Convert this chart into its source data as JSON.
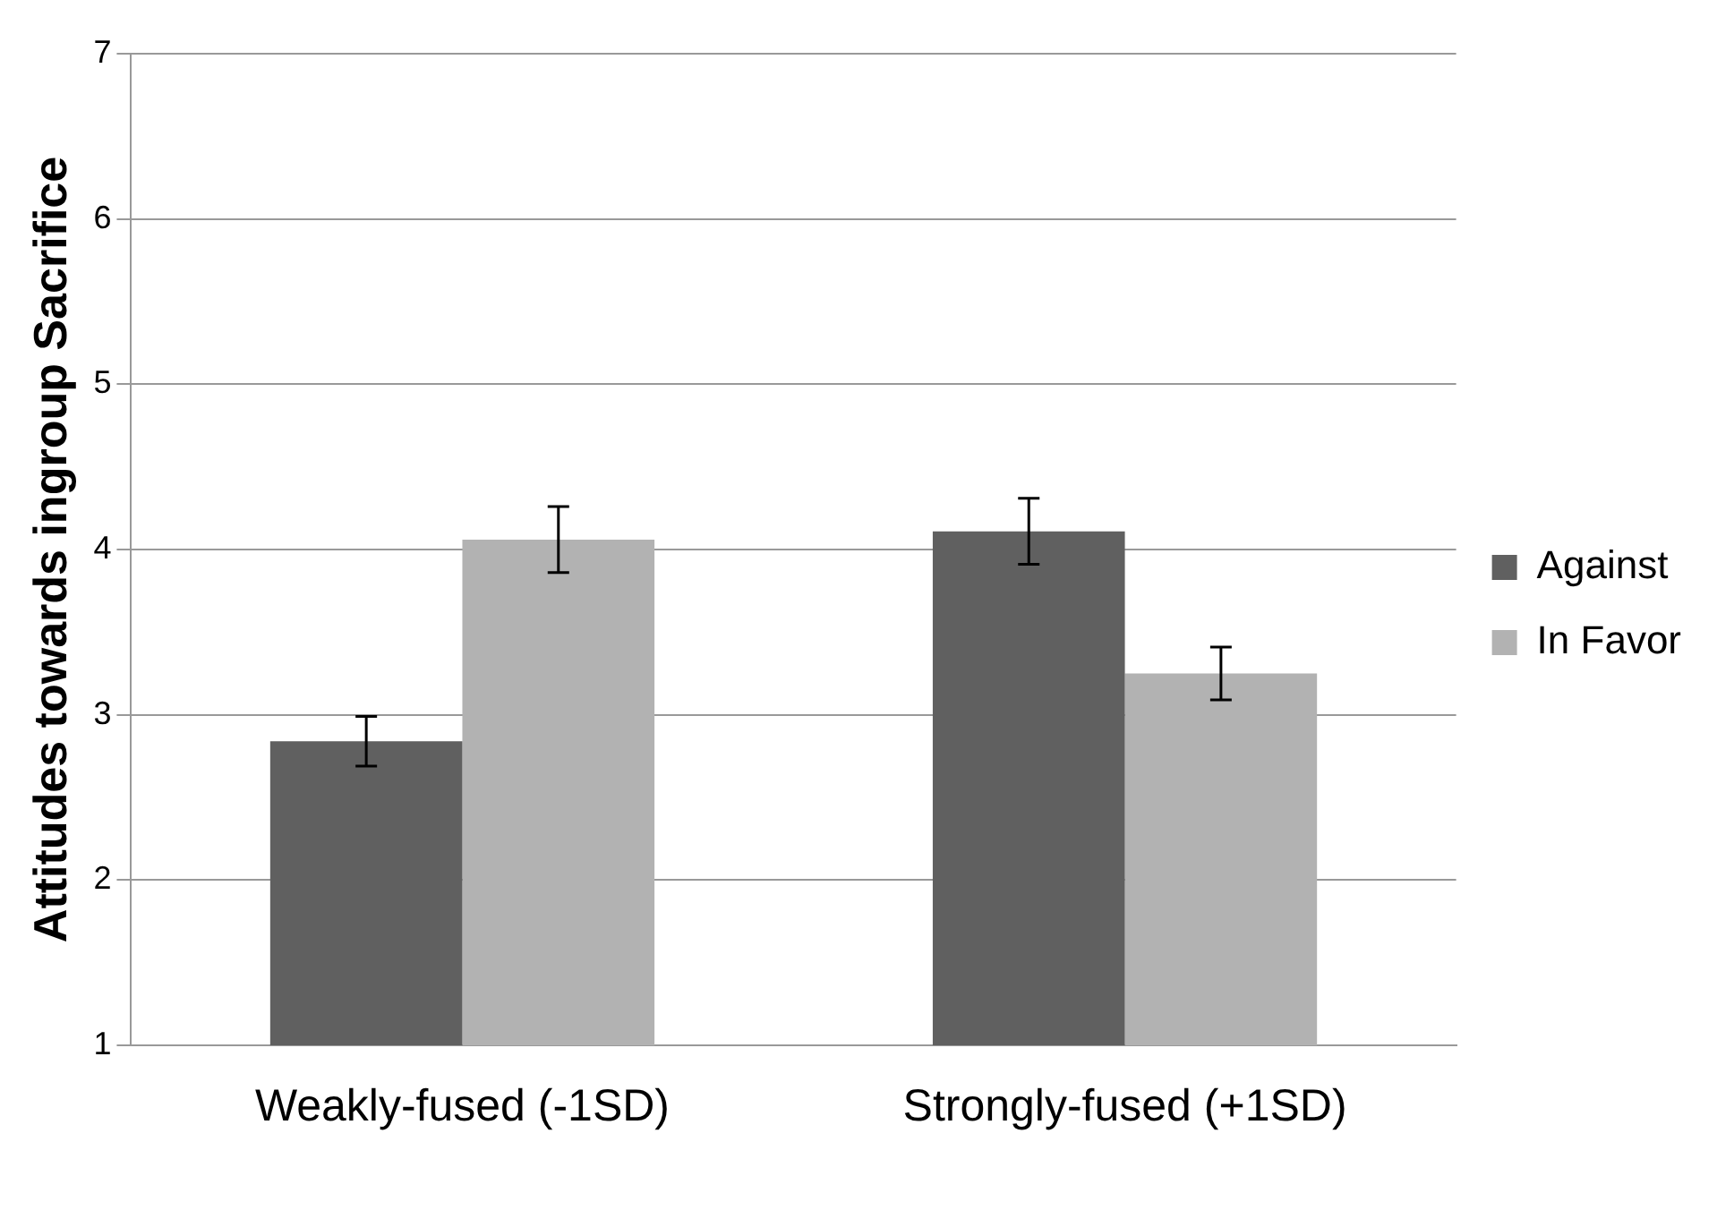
{
  "chart_data": {
    "type": "bar",
    "ylabel": "Attitudes towards ingroup Sacrifice",
    "categories": [
      "Weakly-fused (-1SD)",
      "Strongly-fused (+1SD)"
    ],
    "series": [
      {
        "name": "Against",
        "color": "#606060",
        "values": [
          2.84,
          4.11
        ],
        "errors": [
          0.15,
          0.2
        ]
      },
      {
        "name": "In Favor",
        "color": "#b2b2b2",
        "values": [
          4.06,
          3.25
        ],
        "errors": [
          0.2,
          0.16
        ]
      }
    ],
    "ylim": [
      1,
      7
    ],
    "yticks": [
      1,
      2,
      3,
      4,
      5,
      6,
      7
    ],
    "grid": "y",
    "legend": "right"
  }
}
